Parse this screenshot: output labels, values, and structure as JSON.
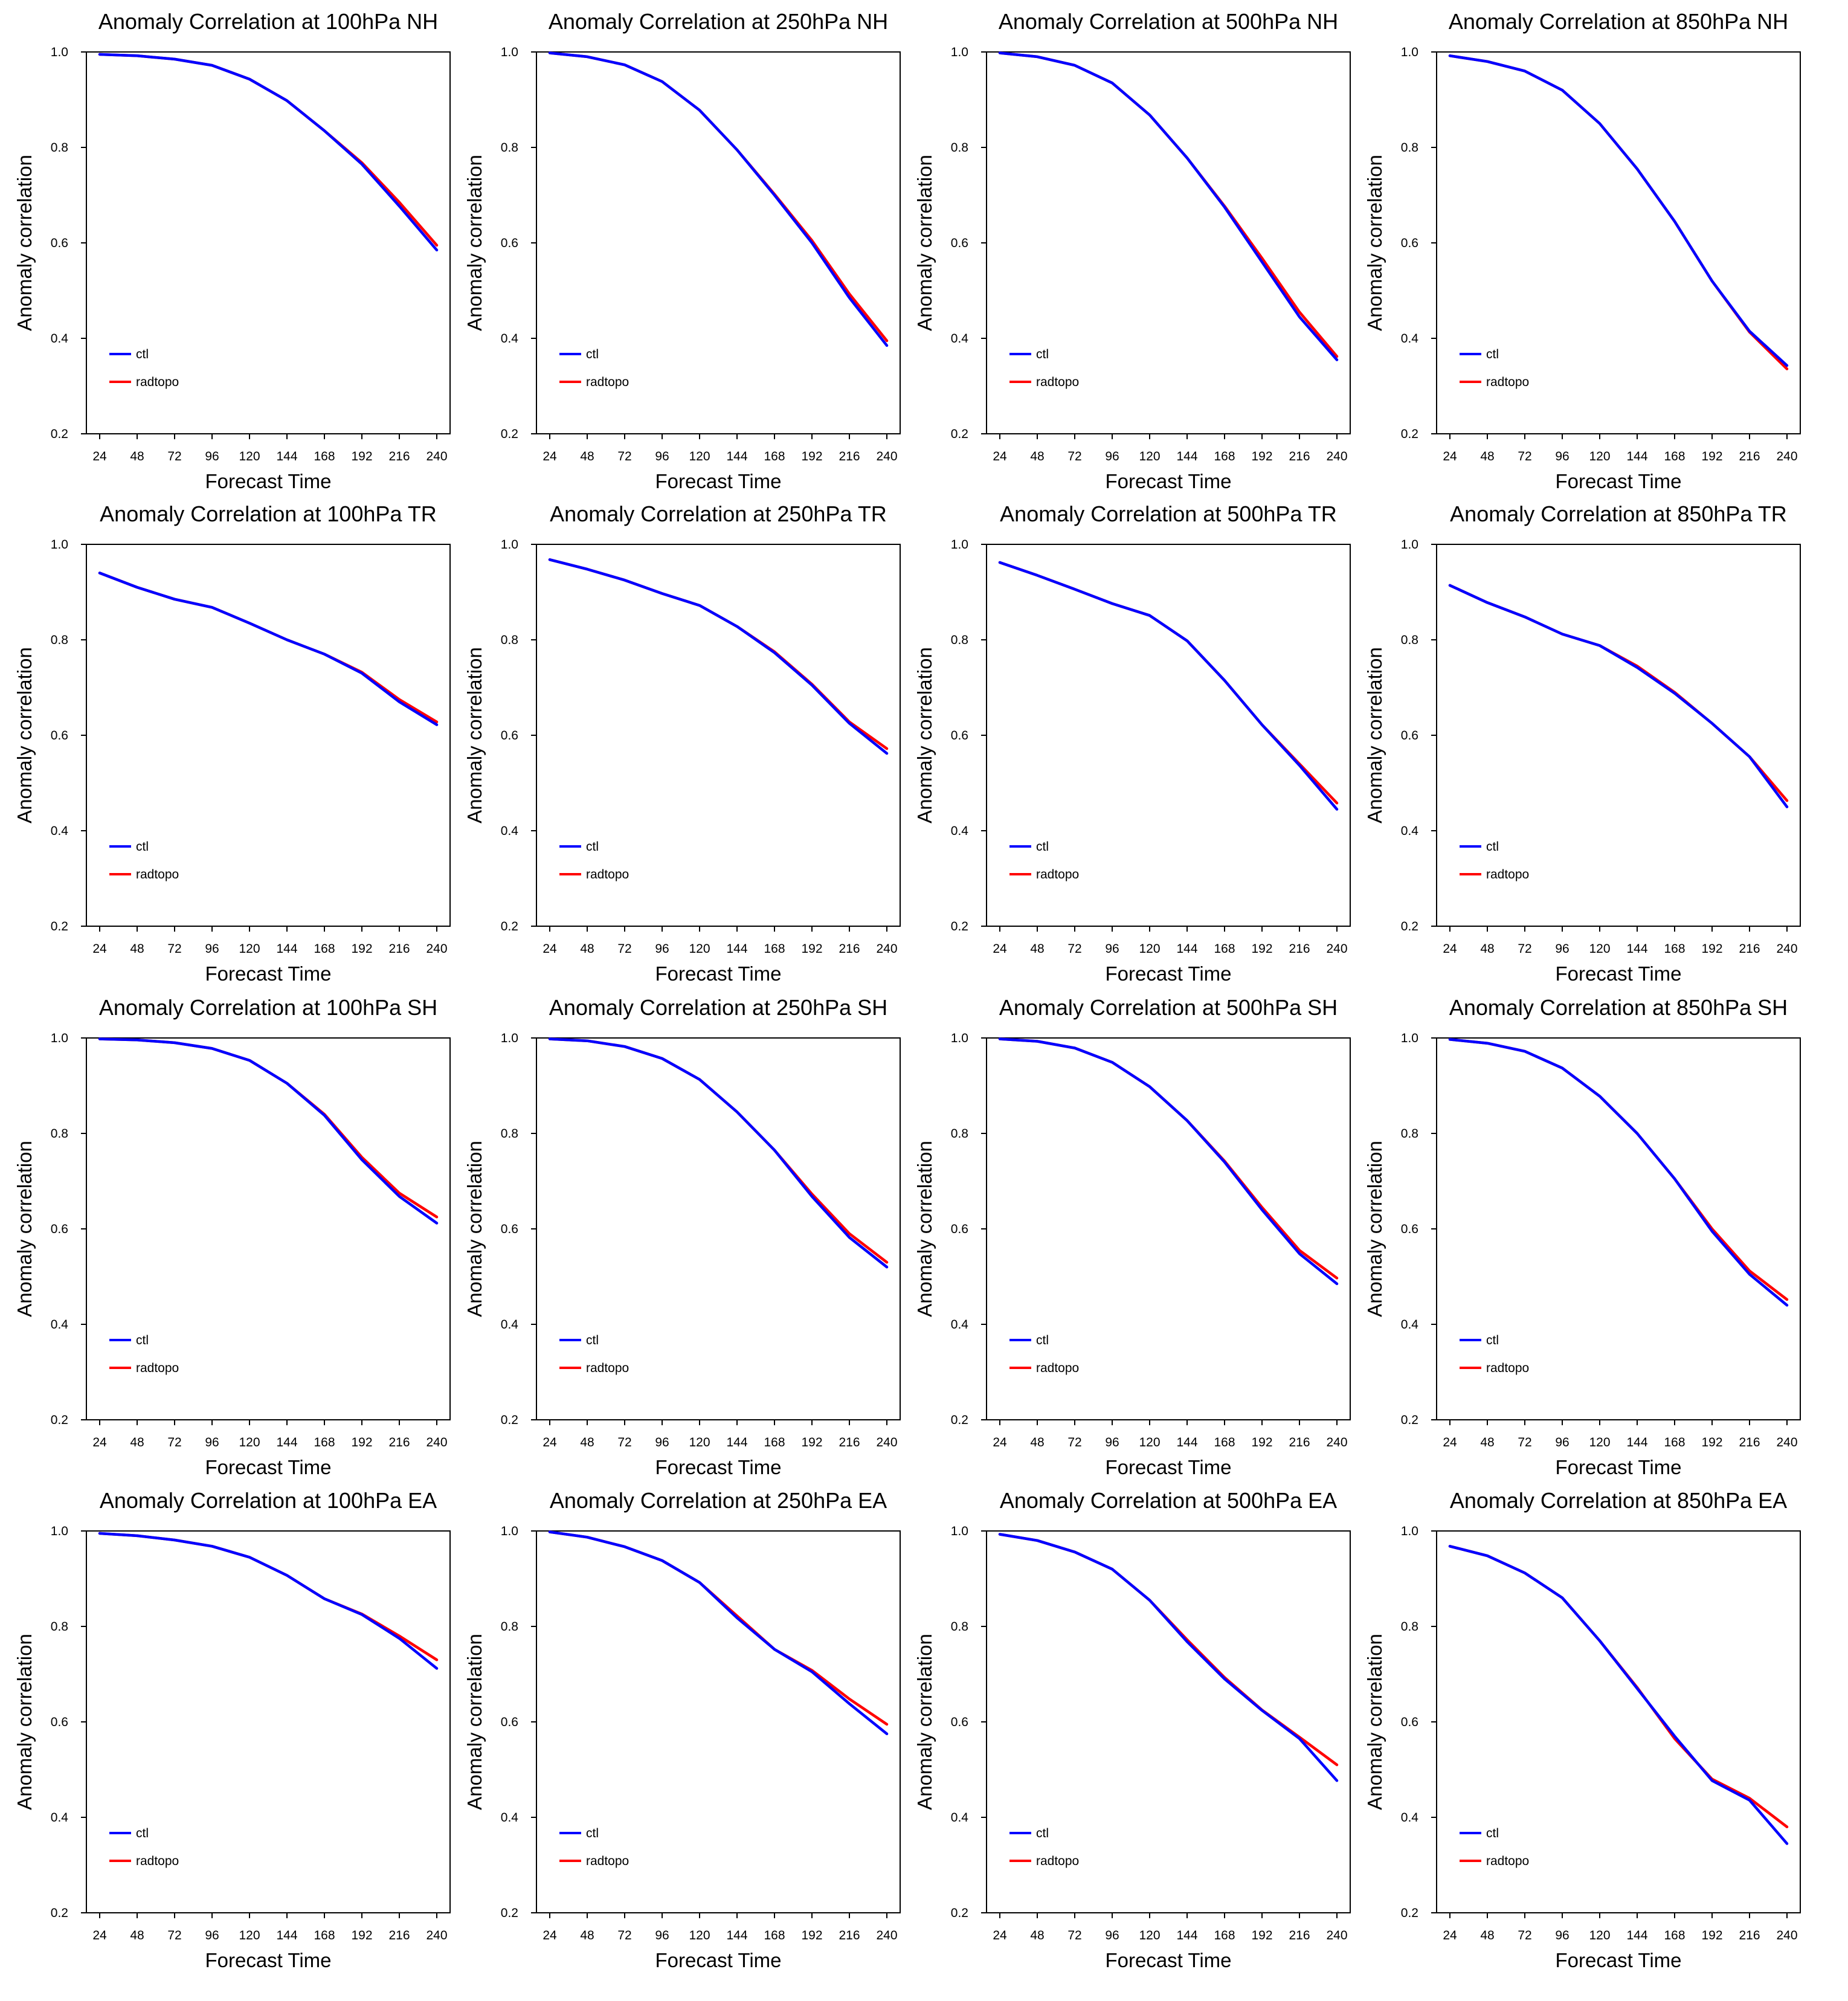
{
  "chart_data": [
    {
      "type": "line",
      "title": "Anomaly Correlation at 100hPa NH",
      "xlabel": "Forecast Time",
      "ylabel": "Anomaly correlation",
      "ylim": [
        0.2,
        1.0
      ],
      "yticks": [
        "0.2",
        "0.4",
        "0.6",
        "0.8",
        "1.0"
      ],
      "x": [
        24,
        48,
        72,
        96,
        120,
        144,
        168,
        192,
        216,
        240
      ],
      "legend": [
        "ctl",
        "radtopo"
      ],
      "series": [
        {
          "name": "ctl",
          "color": "#0000ff",
          "values": [
            0.995,
            0.992,
            0.985,
            0.972,
            0.943,
            0.898,
            0.835,
            0.765,
            0.677,
            0.585
          ]
        },
        {
          "name": "radtopo",
          "color": "#ff0000",
          "values": [
            0.995,
            0.992,
            0.985,
            0.972,
            0.943,
            0.898,
            0.835,
            0.768,
            0.685,
            0.595
          ]
        }
      ]
    },
    {
      "type": "line",
      "title": "Anomaly Correlation at 250hPa NH",
      "xlabel": "Forecast Time",
      "ylabel": "Anomaly correlation",
      "ylim": [
        0.2,
        1.0
      ],
      "yticks": [
        "0.2",
        "0.4",
        "0.6",
        "0.8",
        "1.0"
      ],
      "x": [
        24,
        48,
        72,
        96,
        120,
        144,
        168,
        192,
        216,
        240
      ],
      "legend": [
        "ctl",
        "radtopo"
      ],
      "series": [
        {
          "name": "ctl",
          "color": "#0000ff",
          "values": [
            0.998,
            0.99,
            0.973,
            0.938,
            0.878,
            0.795,
            0.7,
            0.6,
            0.485,
            0.385
          ]
        },
        {
          "name": "radtopo",
          "color": "#ff0000",
          "values": [
            0.998,
            0.99,
            0.973,
            0.938,
            0.878,
            0.795,
            0.702,
            0.605,
            0.493,
            0.395
          ]
        }
      ]
    },
    {
      "type": "line",
      "title": "Anomaly Correlation at 500hPa NH",
      "xlabel": "Forecast Time",
      "ylabel": "Anomaly correlation",
      "ylim": [
        0.2,
        1.0
      ],
      "yticks": [
        "0.2",
        "0.4",
        "0.6",
        "0.8",
        "1.0"
      ],
      "x": [
        24,
        48,
        72,
        96,
        120,
        144,
        168,
        192,
        216,
        240
      ],
      "legend": [
        "ctl",
        "radtopo"
      ],
      "series": [
        {
          "name": "ctl",
          "color": "#0000ff",
          "values": [
            0.998,
            0.99,
            0.972,
            0.935,
            0.868,
            0.778,
            0.675,
            0.56,
            0.445,
            0.355
          ]
        },
        {
          "name": "radtopo",
          "color": "#ff0000",
          "values": [
            0.998,
            0.99,
            0.972,
            0.935,
            0.868,
            0.778,
            0.677,
            0.568,
            0.455,
            0.362
          ]
        }
      ]
    },
    {
      "type": "line",
      "title": "Anomaly Correlation at 850hPa NH",
      "xlabel": "Forecast Time",
      "ylabel": "Anomaly correlation",
      "ylim": [
        0.2,
        1.0
      ],
      "yticks": [
        "0.2",
        "0.4",
        "0.6",
        "0.8",
        "1.0"
      ],
      "x": [
        24,
        48,
        72,
        96,
        120,
        144,
        168,
        192,
        216,
        240
      ],
      "legend": [
        "ctl",
        "radtopo"
      ],
      "series": [
        {
          "name": "ctl",
          "color": "#0000ff",
          "values": [
            0.992,
            0.98,
            0.96,
            0.92,
            0.85,
            0.755,
            0.645,
            0.52,
            0.415,
            0.343
          ]
        },
        {
          "name": "radtopo",
          "color": "#ff0000",
          "values": [
            0.992,
            0.98,
            0.96,
            0.92,
            0.85,
            0.755,
            0.645,
            0.52,
            0.413,
            0.336
          ]
        }
      ]
    },
    {
      "type": "line",
      "title": "Anomaly Correlation at 100hPa TR",
      "xlabel": "Forecast Time",
      "ylabel": "Anomaly correlation",
      "ylim": [
        0.2,
        1.0
      ],
      "yticks": [
        "0.2",
        "0.4",
        "0.6",
        "0.8",
        "1.0"
      ],
      "x": [
        24,
        48,
        72,
        96,
        120,
        144,
        168,
        192,
        216,
        240
      ],
      "legend": [
        "ctl",
        "radtopo"
      ],
      "series": [
        {
          "name": "ctl",
          "color": "#0000ff",
          "values": [
            0.94,
            0.91,
            0.885,
            0.868,
            0.835,
            0.8,
            0.77,
            0.73,
            0.67,
            0.622
          ]
        },
        {
          "name": "radtopo",
          "color": "#ff0000",
          "values": [
            0.94,
            0.91,
            0.885,
            0.868,
            0.835,
            0.8,
            0.77,
            0.732,
            0.675,
            0.628
          ]
        }
      ]
    },
    {
      "type": "line",
      "title": "Anomaly Correlation at 250hPa TR",
      "xlabel": "Forecast Time",
      "ylabel": "Anomaly correlation",
      "ylim": [
        0.2,
        1.0
      ],
      "yticks": [
        "0.2",
        "0.4",
        "0.6",
        "0.8",
        "1.0"
      ],
      "x": [
        24,
        48,
        72,
        96,
        120,
        144,
        168,
        192,
        216,
        240
      ],
      "legend": [
        "ctl",
        "radtopo"
      ],
      "series": [
        {
          "name": "ctl",
          "color": "#0000ff",
          "values": [
            0.968,
            0.948,
            0.925,
            0.897,
            0.872,
            0.828,
            0.773,
            0.705,
            0.625,
            0.562
          ]
        },
        {
          "name": "radtopo",
          "color": "#ff0000",
          "values": [
            0.968,
            0.948,
            0.925,
            0.897,
            0.872,
            0.828,
            0.775,
            0.707,
            0.628,
            0.572
          ]
        }
      ]
    },
    {
      "type": "line",
      "title": "Anomaly Correlation at 500hPa TR",
      "xlabel": "Forecast Time",
      "ylabel": "Anomaly correlation",
      "ylim": [
        0.2,
        1.0
      ],
      "yticks": [
        "0.2",
        "0.4",
        "0.6",
        "0.8",
        "1.0"
      ],
      "x": [
        24,
        48,
        72,
        96,
        120,
        144,
        168,
        192,
        216,
        240
      ],
      "legend": [
        "ctl",
        "radtopo"
      ],
      "series": [
        {
          "name": "ctl",
          "color": "#0000ff",
          "values": [
            0.962,
            0.935,
            0.906,
            0.876,
            0.851,
            0.798,
            0.715,
            0.622,
            0.537,
            0.445
          ]
        },
        {
          "name": "radtopo",
          "color": "#ff0000",
          "values": [
            0.962,
            0.935,
            0.906,
            0.876,
            0.851,
            0.798,
            0.715,
            0.622,
            0.54,
            0.458
          ]
        }
      ]
    },
    {
      "type": "line",
      "title": "Anomaly Correlation at 850hPa TR",
      "xlabel": "Forecast Time",
      "ylabel": "Anomaly correlation",
      "ylim": [
        0.2,
        1.0
      ],
      "yticks": [
        "0.2",
        "0.4",
        "0.6",
        "0.8",
        "1.0"
      ],
      "x": [
        24,
        48,
        72,
        96,
        120,
        144,
        168,
        192,
        216,
        240
      ],
      "legend": [
        "ctl",
        "radtopo"
      ],
      "series": [
        {
          "name": "ctl",
          "color": "#0000ff",
          "values": [
            0.914,
            0.878,
            0.848,
            0.812,
            0.788,
            0.742,
            0.688,
            0.625,
            0.555,
            0.45
          ]
        },
        {
          "name": "radtopo",
          "color": "#ff0000",
          "values": [
            0.914,
            0.878,
            0.848,
            0.812,
            0.788,
            0.745,
            0.69,
            0.625,
            0.555,
            0.463
          ]
        }
      ]
    },
    {
      "type": "line",
      "title": "Anomaly Correlation at 100hPa SH",
      "xlabel": "Forecast Time",
      "ylabel": "Anomaly correlation",
      "ylim": [
        0.2,
        1.0
      ],
      "yticks": [
        "0.2",
        "0.4",
        "0.6",
        "0.8",
        "1.0"
      ],
      "x": [
        24,
        48,
        72,
        96,
        120,
        144,
        168,
        192,
        216,
        240
      ],
      "legend": [
        "ctl",
        "radtopo"
      ],
      "series": [
        {
          "name": "ctl",
          "color": "#0000ff",
          "values": [
            0.998,
            0.996,
            0.99,
            0.978,
            0.953,
            0.905,
            0.838,
            0.745,
            0.668,
            0.612
          ]
        },
        {
          "name": "radtopo",
          "color": "#ff0000",
          "values": [
            0.998,
            0.996,
            0.99,
            0.978,
            0.953,
            0.905,
            0.84,
            0.75,
            0.675,
            0.625
          ]
        }
      ]
    },
    {
      "type": "line",
      "title": "Anomaly Correlation at 250hPa SH",
      "xlabel": "Forecast Time",
      "ylabel": "Anomaly correlation",
      "ylim": [
        0.2,
        1.0
      ],
      "yticks": [
        "0.2",
        "0.4",
        "0.6",
        "0.8",
        "1.0"
      ],
      "x": [
        24,
        48,
        72,
        96,
        120,
        144,
        168,
        192,
        216,
        240
      ],
      "legend": [
        "ctl",
        "radtopo"
      ],
      "series": [
        {
          "name": "ctl",
          "color": "#0000ff",
          "values": [
            0.998,
            0.994,
            0.982,
            0.957,
            0.913,
            0.845,
            0.765,
            0.668,
            0.582,
            0.52
          ]
        },
        {
          "name": "radtopo",
          "color": "#ff0000",
          "values": [
            0.998,
            0.994,
            0.982,
            0.957,
            0.913,
            0.845,
            0.765,
            0.673,
            0.59,
            0.53
          ]
        }
      ]
    },
    {
      "type": "line",
      "title": "Anomaly Correlation at 500hPa SH",
      "xlabel": "Forecast Time",
      "ylabel": "Anomaly correlation",
      "ylim": [
        0.2,
        1.0
      ],
      "yticks": [
        "0.2",
        "0.4",
        "0.6",
        "0.8",
        "1.0"
      ],
      "x": [
        24,
        48,
        72,
        96,
        120,
        144,
        168,
        192,
        216,
        240
      ],
      "legend": [
        "ctl",
        "radtopo"
      ],
      "series": [
        {
          "name": "ctl",
          "color": "#0000ff",
          "values": [
            0.998,
            0.993,
            0.979,
            0.949,
            0.898,
            0.827,
            0.74,
            0.64,
            0.548,
            0.485
          ]
        },
        {
          "name": "radtopo",
          "color": "#ff0000",
          "values": [
            0.998,
            0.993,
            0.979,
            0.949,
            0.898,
            0.827,
            0.742,
            0.645,
            0.555,
            0.497
          ]
        }
      ]
    },
    {
      "type": "line",
      "title": "Anomaly Correlation at 850hPa SH",
      "xlabel": "Forecast Time",
      "ylabel": "Anomaly correlation",
      "ylim": [
        0.2,
        1.0
      ],
      "yticks": [
        "0.2",
        "0.4",
        "0.6",
        "0.8",
        "1.0"
      ],
      "x": [
        24,
        48,
        72,
        96,
        120,
        144,
        168,
        192,
        216,
        240
      ],
      "legend": [
        "ctl",
        "radtopo"
      ],
      "series": [
        {
          "name": "ctl",
          "color": "#0000ff",
          "values": [
            0.997,
            0.989,
            0.972,
            0.937,
            0.878,
            0.8,
            0.705,
            0.595,
            0.505,
            0.44
          ]
        },
        {
          "name": "radtopo",
          "color": "#ff0000",
          "values": [
            0.997,
            0.989,
            0.972,
            0.937,
            0.878,
            0.8,
            0.705,
            0.6,
            0.512,
            0.452
          ]
        }
      ]
    },
    {
      "type": "line",
      "title": "Anomaly Correlation at 100hPa EA",
      "xlabel": "Forecast Time",
      "ylabel": "Anomaly correlation",
      "ylim": [
        0.2,
        1.0
      ],
      "yticks": [
        "0.2",
        "0.4",
        "0.6",
        "0.8",
        "1.0"
      ],
      "x": [
        24,
        48,
        72,
        96,
        120,
        144,
        168,
        192,
        216,
        240
      ],
      "legend": [
        "ctl",
        "radtopo"
      ],
      "series": [
        {
          "name": "ctl",
          "color": "#0000ff",
          "values": [
            0.995,
            0.99,
            0.981,
            0.968,
            0.945,
            0.907,
            0.858,
            0.825,
            0.775,
            0.712
          ]
        },
        {
          "name": "radtopo",
          "color": "#ff0000",
          "values": [
            0.995,
            0.99,
            0.981,
            0.968,
            0.945,
            0.907,
            0.858,
            0.826,
            0.78,
            0.73
          ]
        }
      ]
    },
    {
      "type": "line",
      "title": "Anomaly Correlation at 250hPa EA",
      "xlabel": "Forecast Time",
      "ylabel": "Anomaly correlation",
      "ylim": [
        0.2,
        1.0
      ],
      "yticks": [
        "0.2",
        "0.4",
        "0.6",
        "0.8",
        "1.0"
      ],
      "x": [
        24,
        48,
        72,
        96,
        120,
        144,
        168,
        192,
        216,
        240
      ],
      "legend": [
        "ctl",
        "radtopo"
      ],
      "series": [
        {
          "name": "ctl",
          "color": "#0000ff",
          "values": [
            0.998,
            0.987,
            0.967,
            0.938,
            0.892,
            0.818,
            0.752,
            0.705,
            0.638,
            0.575
          ]
        },
        {
          "name": "radtopo",
          "color": "#ff0000",
          "values": [
            0.998,
            0.987,
            0.967,
            0.938,
            0.892,
            0.822,
            0.752,
            0.708,
            0.648,
            0.595
          ]
        }
      ]
    },
    {
      "type": "line",
      "title": "Anomaly Correlation at 500hPa EA",
      "xlabel": "Forecast Time",
      "ylabel": "Anomaly correlation",
      "ylim": [
        0.2,
        1.0
      ],
      "yticks": [
        "0.2",
        "0.4",
        "0.6",
        "0.8",
        "1.0"
      ],
      "x": [
        24,
        48,
        72,
        96,
        120,
        144,
        168,
        192,
        216,
        240
      ],
      "legend": [
        "ctl",
        "radtopo"
      ],
      "series": [
        {
          "name": "ctl",
          "color": "#0000ff",
          "values": [
            0.993,
            0.98,
            0.956,
            0.92,
            0.855,
            0.768,
            0.69,
            0.624,
            0.565,
            0.477
          ]
        },
        {
          "name": "radtopo",
          "color": "#ff0000",
          "values": [
            0.993,
            0.98,
            0.956,
            0.92,
            0.855,
            0.772,
            0.693,
            0.625,
            0.568,
            0.51
          ]
        }
      ]
    },
    {
      "type": "line",
      "title": "Anomaly Correlation at 850hPa EA",
      "xlabel": "Forecast Time",
      "ylabel": "Anomaly correlation",
      "ylim": [
        0.2,
        1.0
      ],
      "yticks": [
        "0.2",
        "0.4",
        "0.6",
        "0.8",
        "1.0"
      ],
      "x": [
        24,
        48,
        72,
        96,
        120,
        144,
        168,
        192,
        216,
        240
      ],
      "legend": [
        "ctl",
        "radtopo"
      ],
      "series": [
        {
          "name": "ctl",
          "color": "#0000ff",
          "values": [
            0.968,
            0.948,
            0.912,
            0.86,
            0.77,
            0.67,
            0.57,
            0.477,
            0.436,
            0.345
          ]
        },
        {
          "name": "radtopo",
          "color": "#ff0000",
          "values": [
            0.968,
            0.948,
            0.912,
            0.86,
            0.77,
            0.672,
            0.565,
            0.48,
            0.44,
            0.38
          ]
        }
      ]
    }
  ]
}
